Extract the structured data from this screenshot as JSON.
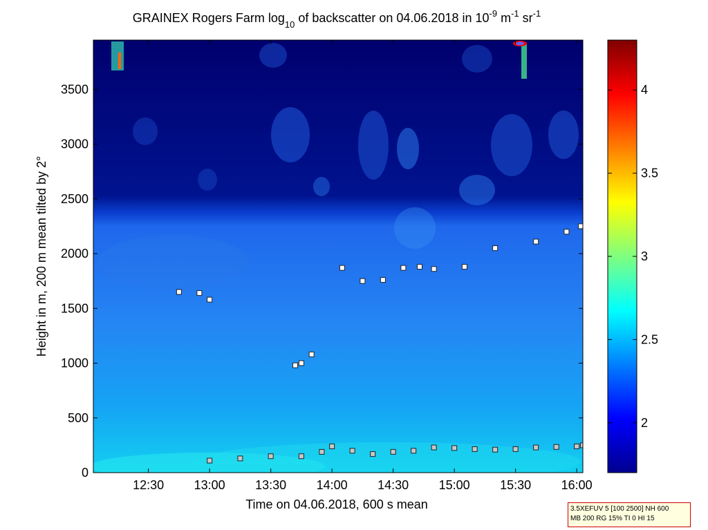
{
  "chart_data": {
    "type": "heatmap",
    "title": {
      "part1": "GRAINEX Rogers Farm log",
      "sub": "10",
      "part2": " of backscatter on 04.06.2018 in 10",
      "sup1": "-9",
      "part3": " m",
      "sup2": "-1",
      "part4": " sr",
      "sup3": "-1"
    },
    "xlabel": "Time on 04.06.2018, 600 s mean",
    "ylabel": "Height in m, 200 m mean tilted by 2°",
    "x_range": [
      "12:03",
      "16:03"
    ],
    "y_range": [
      0,
      3950
    ],
    "x_ticks": [
      "12:30",
      "13:00",
      "13:30",
      "14:00",
      "14:30",
      "15:00",
      "15:30",
      "16:00"
    ],
    "y_ticks": [
      0,
      500,
      1000,
      1500,
      2000,
      2500,
      3000,
      3500
    ],
    "colorbar": {
      "range": [
        1.7,
        4.3
      ],
      "ticks": [
        "2",
        "2.5",
        "3",
        "3.5",
        "4"
      ],
      "colormap": "jet"
    },
    "series": [
      {
        "marker": "square-grey",
        "x": [
          "13:00",
          "13:15",
          "13:30",
          "13:45",
          "13:55",
          "14:00",
          "14:10",
          "14:20",
          "14:30",
          "14:40",
          "14:50",
          "15:00",
          "15:10",
          "15:20",
          "15:30",
          "15:40",
          "15:50",
          "16:00",
          "16:03"
        ],
        "y": [
          110,
          130,
          150,
          150,
          190,
          240,
          200,
          170,
          190,
          200,
          230,
          225,
          215,
          210,
          215,
          230,
          235,
          240,
          250
        ]
      },
      {
        "marker": "square-white",
        "x": [
          "12:45",
          "12:55",
          "13:00",
          "13:42",
          "13:45",
          "13:50",
          "14:05",
          "14:15",
          "14:25",
          "14:35",
          "14:43",
          "14:50",
          "15:05",
          "15:20",
          "15:40",
          "15:55",
          "16:02"
        ],
        "y": [
          1650,
          1640,
          1580,
          980,
          1000,
          1080,
          1870,
          1750,
          1760,
          1870,
          1880,
          1860,
          1880,
          2050,
          2110,
          2200,
          2250
        ]
      }
    ]
  },
  "info_box": {
    "line1": "3.5XEFUV 5 [100 2500] NH 600",
    "line2": "MB 200 RG 15% TI 0 HI 15"
  }
}
